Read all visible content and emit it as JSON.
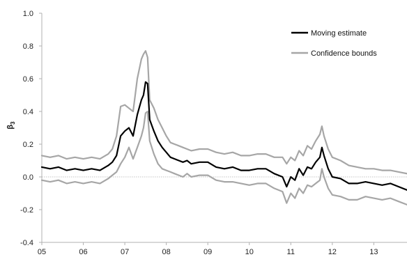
{
  "chart_data": {
    "type": "line",
    "title": "",
    "xlabel": "",
    "ylabel": "β3",
    "ylabel_main": "β",
    "ylabel_sub": "3",
    "xlim": [
      2005.0,
      2013.8
    ],
    "ylim": [
      -0.4,
      1.0
    ],
    "x_ticks": [
      2005,
      2006,
      2007,
      2008,
      2009,
      2010,
      2011,
      2012,
      2013
    ],
    "x_tick_labels": [
      "05",
      "06",
      "07",
      "08",
      "09",
      "10",
      "11",
      "12",
      "13"
    ],
    "y_ticks": [
      -0.4,
      -0.2,
      0.0,
      0.2,
      0.4,
      0.6,
      0.8,
      1.0
    ],
    "y_tick_labels": [
      "-0.4",
      "-0.2",
      "0.0",
      "0.2",
      "0.4",
      "0.6",
      "0.8",
      "1.0"
    ],
    "grid": false,
    "zero_line": true,
    "legend_position": "top-right",
    "colors": {
      "estimate": "#000000",
      "bounds": "#a6a6a6",
      "axis": "#b0b0b0"
    },
    "series": [
      {
        "name": "Moving estimate",
        "x": [
          2005.0,
          2005.2,
          2005.4,
          2005.6,
          2005.8,
          2006.0,
          2006.2,
          2006.4,
          2006.6,
          2006.7,
          2006.8,
          2006.9,
          2007.0,
          2007.1,
          2007.2,
          2007.3,
          2007.4,
          2007.45,
          2007.5,
          2007.55,
          2007.6,
          2007.7,
          2007.8,
          2007.9,
          2008.0,
          2008.1,
          2008.2,
          2008.3,
          2008.4,
          2008.5,
          2008.6,
          2008.8,
          2009.0,
          2009.2,
          2009.4,
          2009.6,
          2009.8,
          2010.0,
          2010.2,
          2010.4,
          2010.6,
          2010.8,
          2010.9,
          2011.0,
          2011.1,
          2011.2,
          2011.3,
          2011.4,
          2011.5,
          2011.6,
          2011.7,
          2011.75,
          2011.8,
          2011.9,
          2012.0,
          2012.2,
          2012.4,
          2012.6,
          2012.8,
          2013.0,
          2013.2,
          2013.4,
          2013.6,
          2013.8
        ],
        "values": [
          0.06,
          0.05,
          0.06,
          0.04,
          0.05,
          0.04,
          0.05,
          0.04,
          0.07,
          0.09,
          0.13,
          0.25,
          0.28,
          0.3,
          0.25,
          0.38,
          0.47,
          0.5,
          0.58,
          0.57,
          0.35,
          0.28,
          0.22,
          0.18,
          0.15,
          0.12,
          0.11,
          0.1,
          0.09,
          0.1,
          0.08,
          0.09,
          0.09,
          0.06,
          0.05,
          0.06,
          0.04,
          0.04,
          0.05,
          0.05,
          0.02,
          0.0,
          -0.06,
          0.0,
          -0.02,
          0.05,
          0.01,
          0.06,
          0.05,
          0.09,
          0.12,
          0.18,
          0.13,
          0.05,
          0.0,
          -0.01,
          -0.04,
          -0.04,
          -0.03,
          -0.04,
          -0.05,
          -0.04,
          -0.06,
          -0.08
        ]
      },
      {
        "name": "Confidence bounds",
        "x": [
          2005.0,
          2005.2,
          2005.4,
          2005.6,
          2005.8,
          2006.0,
          2006.2,
          2006.4,
          2006.6,
          2006.7,
          2006.8,
          2006.9,
          2007.0,
          2007.1,
          2007.2,
          2007.3,
          2007.4,
          2007.45,
          2007.5,
          2007.55,
          2007.6,
          2007.7,
          2007.8,
          2007.9,
          2008.0,
          2008.1,
          2008.2,
          2008.3,
          2008.4,
          2008.5,
          2008.6,
          2008.8,
          2009.0,
          2009.2,
          2009.4,
          2009.6,
          2009.8,
          2010.0,
          2010.2,
          2010.4,
          2010.6,
          2010.8,
          2010.9,
          2011.0,
          2011.1,
          2011.2,
          2011.3,
          2011.4,
          2011.5,
          2011.6,
          2011.7,
          2011.75,
          2011.8,
          2011.9,
          2012.0,
          2012.2,
          2012.4,
          2012.6,
          2012.8,
          2013.0,
          2013.2,
          2013.4,
          2013.6,
          2013.8
        ],
        "values": [
          0.13,
          0.12,
          0.13,
          0.11,
          0.12,
          0.11,
          0.12,
          0.11,
          0.14,
          0.17,
          0.25,
          0.43,
          0.44,
          0.42,
          0.4,
          0.6,
          0.72,
          0.75,
          0.77,
          0.73,
          0.47,
          0.42,
          0.35,
          0.3,
          0.25,
          0.21,
          0.2,
          0.19,
          0.18,
          0.17,
          0.16,
          0.17,
          0.17,
          0.15,
          0.14,
          0.15,
          0.13,
          0.13,
          0.14,
          0.14,
          0.12,
          0.12,
          0.08,
          0.12,
          0.1,
          0.16,
          0.13,
          0.19,
          0.17,
          0.22,
          0.26,
          0.31,
          0.25,
          0.17,
          0.12,
          0.1,
          0.07,
          0.06,
          0.05,
          0.05,
          0.04,
          0.04,
          0.03,
          0.02
        ]
      },
      {
        "name": "Confidence bounds",
        "x": [
          2005.0,
          2005.2,
          2005.4,
          2005.6,
          2005.8,
          2006.0,
          2006.2,
          2006.4,
          2006.6,
          2006.7,
          2006.8,
          2006.9,
          2007.0,
          2007.1,
          2007.2,
          2007.3,
          2007.4,
          2007.45,
          2007.5,
          2007.55,
          2007.6,
          2007.7,
          2007.8,
          2007.9,
          2008.0,
          2008.1,
          2008.2,
          2008.3,
          2008.4,
          2008.5,
          2008.6,
          2008.8,
          2009.0,
          2009.2,
          2009.4,
          2009.6,
          2009.8,
          2010.0,
          2010.2,
          2010.4,
          2010.6,
          2010.8,
          2010.9,
          2011.0,
          2011.1,
          2011.2,
          2011.3,
          2011.4,
          2011.5,
          2011.6,
          2011.7,
          2011.75,
          2011.8,
          2011.9,
          2012.0,
          2012.2,
          2012.4,
          2012.6,
          2012.8,
          2013.0,
          2013.2,
          2013.4,
          2013.6,
          2013.8
        ],
        "values": [
          -0.02,
          -0.03,
          -0.02,
          -0.04,
          -0.03,
          -0.04,
          -0.03,
          -0.04,
          -0.01,
          0.01,
          0.03,
          0.08,
          0.12,
          0.18,
          0.11,
          0.18,
          0.25,
          0.3,
          0.39,
          0.4,
          0.22,
          0.14,
          0.08,
          0.05,
          0.04,
          0.03,
          0.02,
          0.01,
          0.0,
          0.02,
          0.0,
          0.01,
          0.01,
          -0.02,
          -0.03,
          -0.03,
          -0.04,
          -0.05,
          -0.04,
          -0.04,
          -0.07,
          -0.09,
          -0.16,
          -0.1,
          -0.13,
          -0.07,
          -0.1,
          -0.05,
          -0.06,
          -0.04,
          -0.02,
          0.05,
          0.0,
          -0.07,
          -0.11,
          -0.12,
          -0.14,
          -0.14,
          -0.12,
          -0.13,
          -0.14,
          -0.13,
          -0.15,
          -0.17
        ]
      }
    ],
    "legend": [
      {
        "label": "Moving estimate",
        "color": "#000000"
      },
      {
        "label": "Confidence bounds",
        "color": "#a6a6a6"
      }
    ]
  }
}
